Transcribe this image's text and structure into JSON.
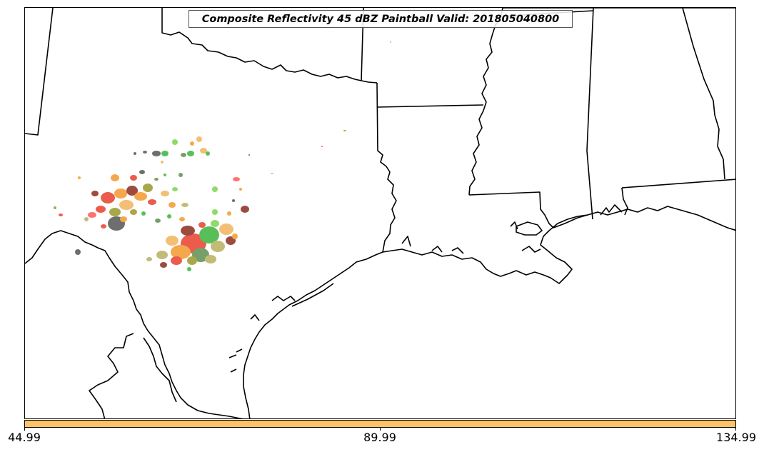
{
  "title": "Composite Reflectivity 45 dBZ Paintball Valid: 201805040800",
  "map": {
    "region": "Southern US – Texas, Louisiana, Mississippi, Alabama",
    "line_color": "#000000",
    "background": "#ffffff"
  },
  "paintball_colors": [
    "#e8402e",
    "#f39a2c",
    "#f2b45c",
    "#3cb43c",
    "#5f8f4f",
    "#8b2d1e",
    "#9a9a2c",
    "#b8b060",
    "#555555",
    "#ff5a5a",
    "#7cd450"
  ],
  "colorbar": {
    "color": "#fec267",
    "ticks": [
      "44.99",
      "89.99",
      "134.99"
    ]
  }
}
